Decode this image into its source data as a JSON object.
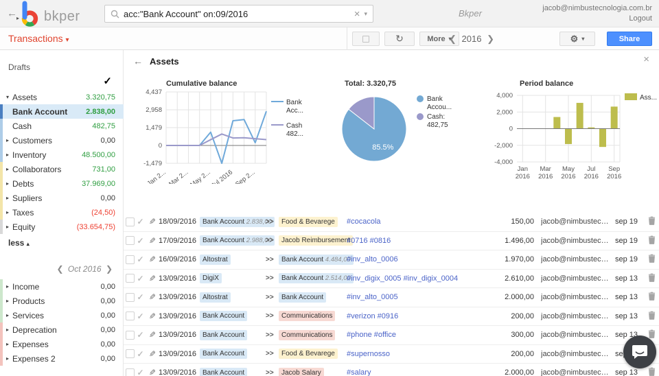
{
  "colors": {
    "brand_blue": "#4285f4",
    "brand_red": "#ea4335",
    "brand_green": "#34a853",
    "brand_yellow": "#fbbc05",
    "accent_red": "#e0442e",
    "share_blue": "#4d90fe",
    "link": "#4a63c8",
    "positive": "#2f9e41",
    "negative": "#ee4133",
    "chips": {
      "blue": "#d9e9f6",
      "yellow": "#fdf2cf",
      "pink": "#f7d9d3"
    },
    "strips": {
      "none": "transparent",
      "selected": "#4a7fc1",
      "blue": "#aecde8",
      "yellow": "#f3e5a9",
      "gray": "#d8d8d8",
      "green": "#cde7cc",
      "pink": "#f3c3bd"
    },
    "series_bank": "#6fa9da",
    "series_cash": "#9a99ca",
    "series_assets": "#bdbd4d",
    "pie_bank": "#73a9d3",
    "pie_cash": "#9a99ca"
  },
  "topbar": {
    "logo_text": "bkper",
    "search_value": "acc:\"Bank Account\" on:09/2016",
    "clear_glyph": "×",
    "app_label": "Bkper",
    "user_email": "jacob@nimbustecnologia.com.br",
    "logout_label": "Logout"
  },
  "toolbar": {
    "view_label": "Transactions",
    "more_label": "More",
    "year": "2016",
    "share_label": "Share"
  },
  "sidebar": {
    "drafts_label": "Drafts",
    "accounts": [
      {
        "name": "Assets",
        "value": "3.320,75",
        "value_color": "positive",
        "caret": "down",
        "strip": "none",
        "selected": false
      },
      {
        "name": "Bank Account",
        "value": "2.838,00",
        "value_color": "positive",
        "caret": "",
        "strip": "selected",
        "selected": true
      },
      {
        "name": "Cash",
        "value": "482,75",
        "value_color": "positive",
        "caret": "",
        "strip": "blue",
        "selected": false
      },
      {
        "name": "Customers",
        "value": "0,00",
        "value_color": "neutral",
        "caret": "right",
        "strip": "blue",
        "selected": false
      },
      {
        "name": "Inventory",
        "value": "48.500,00",
        "value_color": "positive",
        "caret": "right",
        "strip": "blue",
        "selected": false
      },
      {
        "name": "Collaborators",
        "value": "731,00",
        "value_color": "positive",
        "caret": "right",
        "strip": "yellow",
        "selected": false
      },
      {
        "name": "Debts",
        "value": "37.969,00",
        "value_color": "positive",
        "caret": "right",
        "strip": "yellow",
        "selected": false
      },
      {
        "name": "Supliers",
        "value": "0,00",
        "value_color": "neutral",
        "caret": "right",
        "strip": "yellow",
        "selected": false
      },
      {
        "name": "Taxes",
        "value": "(24,50)",
        "value_color": "negative",
        "caret": "right",
        "strip": "yellow",
        "selected": false
      },
      {
        "name": "Equity",
        "value": "(33.654,75)",
        "value_color": "negative",
        "caret": "right",
        "strip": "gray",
        "selected": false
      }
    ],
    "less_label": "less",
    "period": "Oct 2016",
    "accounts_bottom": [
      {
        "name": "Income",
        "value": "0,00",
        "value_color": "neutral",
        "caret": "right",
        "strip": "green",
        "selected": false
      },
      {
        "name": "Products",
        "value": "0,00",
        "value_color": "neutral",
        "caret": "right",
        "strip": "green",
        "selected": false
      },
      {
        "name": "Services",
        "value": "0,00",
        "value_color": "neutral",
        "caret": "right",
        "strip": "green",
        "selected": false
      },
      {
        "name": "Deprecation",
        "value": "0,00",
        "value_color": "neutral",
        "caret": "right",
        "strip": "pink",
        "selected": false
      },
      {
        "name": "Expenses",
        "value": "0,00",
        "value_color": "neutral",
        "caret": "right",
        "strip": "pink",
        "selected": false
      },
      {
        "name": "Expenses 2",
        "value": "0,00",
        "value_color": "neutral",
        "caret": "right",
        "strip": "pink",
        "selected": false
      }
    ]
  },
  "main": {
    "title": "Assets",
    "close_glyph": "×"
  },
  "chart_data": [
    {
      "type": "line",
      "title": "Cumulative balance",
      "x": [
        "Jan 2016",
        "Feb 2016",
        "Mar 2016",
        "Apr 2016",
        "May 2016",
        "Jun 2016",
        "Jul 2016",
        "Aug 2016",
        "Sep 2016",
        "Oct 2016"
      ],
      "x_tick_labels": [
        "Jan 2...",
        "Mar 2...",
        "May 2...",
        "Jul 2016",
        "Sep 2..."
      ],
      "x_tick_indices": [
        0,
        2,
        4,
        6,
        8
      ],
      "series": [
        {
          "name": "Bank Account",
          "legend_lines": [
            "Bank",
            "Acc..."
          ],
          "color_key": "series_bank",
          "values": [
            0,
            0,
            0,
            0,
            1100,
            -1479,
            2050,
            2150,
            230,
            2838
          ]
        },
        {
          "name": "Cash",
          "legend_lines": [
            "Cash",
            "482..."
          ],
          "color_key": "series_cash",
          "values": [
            0,
            0,
            0,
            0,
            480,
            950,
            620,
            640,
            560,
            483
          ]
        }
      ],
      "y_ticks": [
        4437,
        2958,
        1479,
        0,
        -1479
      ],
      "y_tick_labels": [
        "4,437",
        "2,958",
        "1,479",
        "0",
        "-1,479"
      ],
      "ylim": [
        -1479,
        4437
      ],
      "grid": true,
      "legend_position": "right"
    },
    {
      "type": "pie",
      "title": "Total: 3.320,75",
      "slices": [
        {
          "label": "Bank Account",
          "legend_lines": [
            "Bank",
            "Accou..."
          ],
          "pct": 85.5,
          "value_label": "85.5%",
          "color_key": "pie_bank"
        },
        {
          "label": "Cash",
          "legend_lines": [
            "Cash:",
            "482,75"
          ],
          "pct": 14.5,
          "value_label": "",
          "color_key": "pie_cash"
        }
      ],
      "legend_position": "right"
    },
    {
      "type": "bar",
      "title": "Period balance",
      "categories": [
        "Jan 2016",
        "Feb 2016",
        "Mar 2016",
        "Apr 2016",
        "May 2016",
        "Jun 2016",
        "Jul 2016",
        "Aug 2016",
        "Sep 2016"
      ],
      "x_tick_labels": [
        [
          "Jan",
          "2016"
        ],
        [
          "Mar",
          "2016"
        ],
        [
          "May",
          "2016"
        ],
        [
          "Jul",
          "2016"
        ],
        [
          "Sep",
          "2016"
        ]
      ],
      "x_tick_indices": [
        0,
        2,
        4,
        6,
        8
      ],
      "series": [
        {
          "name": "Assets",
          "legend_lines": [
            "Ass..."
          ],
          "color_key": "series_assets",
          "values": [
            0,
            0,
            0,
            1400,
            -1850,
            3100,
            150,
            -2200,
            2650
          ]
        }
      ],
      "y_ticks": [
        4000,
        2000,
        0,
        -2000,
        -4000
      ],
      "y_tick_labels": [
        "4,000",
        "2,000",
        "0",
        "-2,000",
        "-4,000"
      ],
      "ylim": [
        -4000,
        4000
      ],
      "grid": true,
      "legend_position": "right"
    }
  ],
  "table": {
    "arrow_glyph": ">>",
    "rows": [
      {
        "date": "18/09/2016",
        "from": "Bank Account",
        "from_balance": "2.838,00",
        "from_color": "blue",
        "to": "Food & Bevarege",
        "to_balance": "",
        "to_color": "yellow",
        "description": "#cocacola",
        "amount": "150,00",
        "user": "jacob@nimbustecno...",
        "posted": "sep 19"
      },
      {
        "date": "17/09/2016",
        "from": "Bank Account",
        "from_balance": "2.988,00",
        "from_color": "blue",
        "to": "Jacob Reimbursement",
        "to_balance": "",
        "to_color": "yellow",
        "description": "#0716 #0816",
        "amount": "1.496,00",
        "user": "jacob@nimbustecno...",
        "posted": "sep 19"
      },
      {
        "date": "16/09/2016",
        "from": "Altostrat",
        "from_balance": "",
        "from_color": "blue",
        "to": "Bank Account",
        "to_balance": "4.484,00",
        "to_color": "blue",
        "description": "#inv_alto_0006",
        "amount": "1.970,00",
        "user": "jacob@nimbustecno...",
        "posted": "sep 19"
      },
      {
        "date": "13/09/2016",
        "from": "DigiX",
        "from_balance": "",
        "from_color": "blue",
        "to": "Bank Account",
        "to_balance": "2.514,00",
        "to_color": "blue",
        "description": "#inv_digix_0005 #inv_digix_0004",
        "amount": "2.610,00",
        "user": "jacob@nimbustecno...",
        "posted": "sep 13"
      },
      {
        "date": "13/09/2016",
        "from": "Altostrat",
        "from_balance": "",
        "from_color": "blue",
        "to": "Bank Account",
        "to_balance": "",
        "to_color": "blue",
        "description": "#inv_alto_0005",
        "amount": "2.000,00",
        "user": "jacob@nimbustecno...",
        "posted": "sep 13"
      },
      {
        "date": "13/09/2016",
        "from": "Bank Account",
        "from_balance": "",
        "from_color": "blue",
        "to": "Communications",
        "to_balance": "",
        "to_color": "pink",
        "description": "#verizon #0916",
        "amount": "200,00",
        "user": "jacob@nimbustecno...",
        "posted": "sep 13"
      },
      {
        "date": "13/09/2016",
        "from": "Bank Account",
        "from_balance": "",
        "from_color": "blue",
        "to": "Communications",
        "to_balance": "",
        "to_color": "pink",
        "description": "#phone #office",
        "amount": "300,00",
        "user": "jacob@nimbustecno...",
        "posted": "sep 13"
      },
      {
        "date": "13/09/2016",
        "from": "Bank Account",
        "from_balance": "",
        "from_color": "blue",
        "to": "Food & Bevarege",
        "to_balance": "",
        "to_color": "yellow",
        "description": "#supernosso",
        "amount": "200,00",
        "user": "jacob@nimbustecno...",
        "posted": "sep 13"
      },
      {
        "date": "13/09/2016",
        "from": "Bank Account",
        "from_balance": "",
        "from_color": "blue",
        "to": "Jacob Salary",
        "to_balance": "",
        "to_color": "pink",
        "description": "#salary",
        "amount": "2.000,00",
        "user": "jacob@nimbustecno...",
        "posted": "sep 13"
      }
    ]
  }
}
